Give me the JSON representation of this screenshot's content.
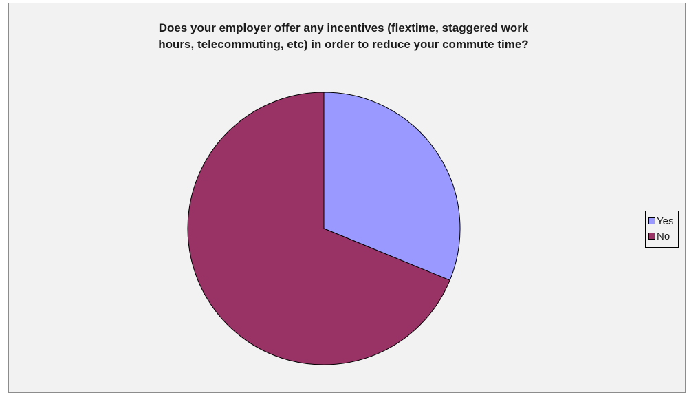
{
  "chart_data": {
    "type": "pie",
    "title_lines": [
      "Does your employer offer any incentives (flextime, staggered work",
      "hours, telecommuting, etc)  in order to reduce your commute time?"
    ],
    "categories": [
      "Yes",
      "No"
    ],
    "values": [
      31.2,
      68.8
    ],
    "colors": [
      "#9999ff",
      "#993366"
    ],
    "start_angle_deg": 0,
    "direction": "clockwise",
    "legend_position": "right",
    "data_labels": false
  }
}
